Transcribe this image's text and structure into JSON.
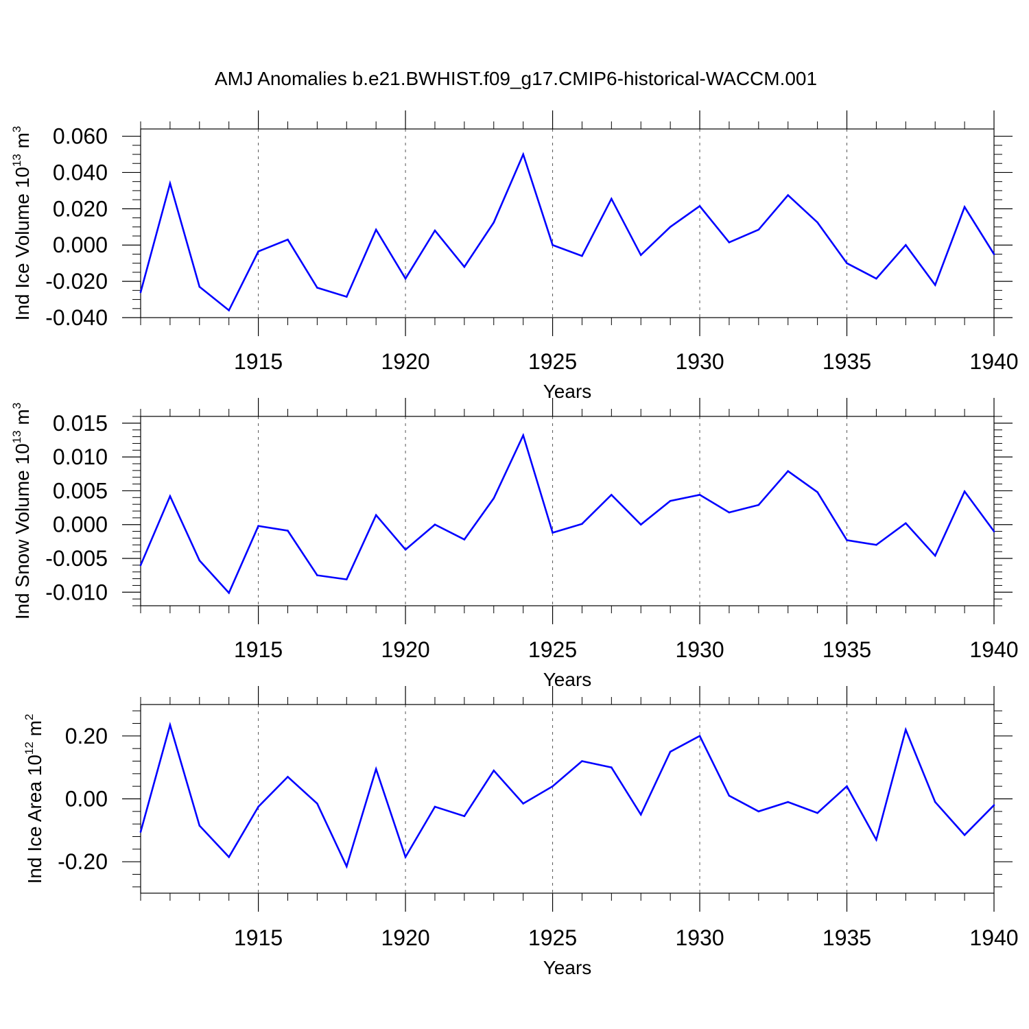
{
  "title": "AMJ Anomalies b.e21.BWHIST.f09_g17.CMIP6-historical-WACCM.001",
  "line_color": "#0000ff",
  "chart_data": [
    {
      "type": "line",
      "ylabel_main": "Ind Ice Volume 10",
      "ylabel_exp": "13",
      "ylabel_unit": " m",
      "ylabel_unit_exp": "3",
      "xlabel": "Years",
      "xlim": [
        1911,
        1940
      ],
      "ylim": [
        -0.04,
        0.064
      ],
      "x_major_ticks": [
        1915,
        1920,
        1925,
        1930,
        1935,
        1940
      ],
      "x_tick_labels": [
        "1915",
        "1920",
        "1925",
        "1930",
        "1935",
        "1940"
      ],
      "y_major_ticks": [
        -0.04,
        -0.02,
        0.0,
        0.02,
        0.04,
        0.06
      ],
      "y_tick_labels": [
        "-0.040",
        "-0.020",
        "0.000",
        "0.020",
        "0.040",
        "0.060"
      ],
      "y_minor_step": 0.005,
      "x": [
        1911,
        1912,
        1913,
        1914,
        1915,
        1916,
        1917,
        1918,
        1919,
        1920,
        1921,
        1922,
        1923,
        1924,
        1925,
        1926,
        1927,
        1928,
        1929,
        1930,
        1931,
        1932,
        1933,
        1934,
        1935,
        1936,
        1937,
        1938,
        1939,
        1940
      ],
      "values": [
        -0.026,
        0.034,
        -0.023,
        -0.036,
        -0.0035,
        0.003,
        -0.0235,
        -0.0285,
        0.0085,
        -0.0185,
        0.008,
        -0.012,
        0.0125,
        0.05,
        0.0,
        -0.006,
        0.0255,
        -0.0055,
        0.01,
        0.0215,
        0.0015,
        0.0085,
        0.0275,
        0.0125,
        -0.01,
        -0.0185,
        0.0,
        -0.022,
        0.021,
        -0.005
      ],
      "grid": "dashed vertical lines at major x ticks"
    },
    {
      "type": "line",
      "ylabel_main": "Ind Snow Volume 10",
      "ylabel_exp": "13",
      "ylabel_unit": " m",
      "ylabel_unit_exp": "3",
      "xlabel": "Years",
      "xlim": [
        1911,
        1940
      ],
      "ylim": [
        -0.012,
        0.016
      ],
      "x_major_ticks": [
        1915,
        1920,
        1925,
        1930,
        1935,
        1940
      ],
      "x_tick_labels": [
        "1915",
        "1920",
        "1925",
        "1930",
        "1935",
        "1940"
      ],
      "y_major_ticks": [
        -0.01,
        -0.005,
        0.0,
        0.005,
        0.01,
        0.015
      ],
      "y_tick_labels": [
        "-0.010",
        "-0.005",
        "0.000",
        "0.005",
        "0.010",
        "0.015"
      ],
      "y_minor_step": 0.001,
      "x": [
        1911,
        1912,
        1913,
        1914,
        1915,
        1916,
        1917,
        1918,
        1919,
        1920,
        1921,
        1922,
        1923,
        1924,
        1925,
        1926,
        1927,
        1928,
        1929,
        1930,
        1931,
        1932,
        1933,
        1934,
        1935,
        1936,
        1937,
        1938,
        1939,
        1940
      ],
      "values": [
        -0.006,
        0.0042,
        -0.0053,
        -0.0101,
        -0.0002,
        -0.0009,
        -0.0075,
        -0.0081,
        0.0014,
        -0.0037,
        0.0,
        -0.0022,
        0.0039,
        0.0132,
        -0.0012,
        0.0001,
        0.0044,
        0.0,
        0.0035,
        0.0044,
        0.0018,
        0.0029,
        0.0079,
        0.0048,
        -0.0023,
        -0.003,
        0.0002,
        -0.0046,
        0.0049,
        -0.001
      ],
      "grid": "dashed vertical lines at major x ticks"
    },
    {
      "type": "line",
      "ylabel_main": "Ind Ice Area 10",
      "ylabel_exp": "12",
      "ylabel_unit": " m",
      "ylabel_unit_exp": "2",
      "xlabel": "Years",
      "xlim": [
        1911,
        1940
      ],
      "ylim": [
        -0.3,
        0.3
      ],
      "x_major_ticks": [
        1915,
        1920,
        1925,
        1930,
        1935,
        1940
      ],
      "x_tick_labels": [
        "1915",
        "1920",
        "1925",
        "1930",
        "1935",
        "1940"
      ],
      "y_major_ticks": [
        -0.2,
        0.0,
        0.2
      ],
      "y_tick_labels": [
        "-0.20",
        "0.00",
        "0.20"
      ],
      "y_minor_step": 0.04,
      "x": [
        1911,
        1912,
        1913,
        1914,
        1915,
        1916,
        1917,
        1918,
        1919,
        1920,
        1921,
        1922,
        1923,
        1924,
        1925,
        1926,
        1927,
        1928,
        1929,
        1930,
        1931,
        1932,
        1933,
        1934,
        1935,
        1936,
        1937,
        1938,
        1939,
        1940
      ],
      "values": [
        -0.105,
        0.235,
        -0.085,
        -0.185,
        -0.025,
        0.07,
        -0.015,
        -0.215,
        0.095,
        -0.185,
        -0.025,
        -0.055,
        0.09,
        -0.015,
        0.04,
        0.12,
        0.1,
        -0.05,
        0.15,
        0.2,
        0.01,
        -0.04,
        -0.01,
        -0.045,
        0.04,
        -0.13,
        0.22,
        -0.01,
        -0.115,
        -0.02
      ],
      "grid": "dashed vertical lines at major x ticks"
    }
  ]
}
